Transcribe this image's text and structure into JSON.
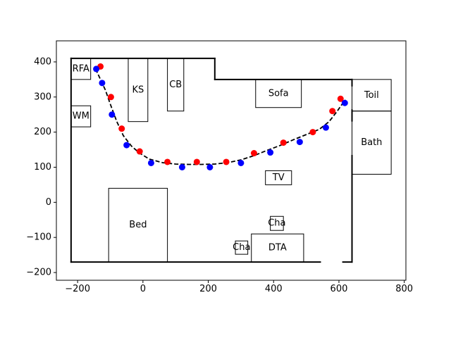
{
  "chart_data": {
    "type": "scatter",
    "title": "",
    "xlabel": "",
    "ylabel": "",
    "xlim": [
      -265,
      805
    ],
    "ylim": [
      -222,
      460
    ],
    "xticks": [
      -200,
      0,
      200,
      400,
      600,
      800
    ],
    "yticks": [
      -200,
      -100,
      0,
      100,
      200,
      300,
      400
    ],
    "xtick_labels": [
      "−200",
      "0",
      "200",
      "400",
      "600",
      "800"
    ],
    "ytick_labels": [
      "−200",
      "−100",
      "0",
      "100",
      "200",
      "300",
      "400"
    ],
    "grid": false,
    "legend": "none",
    "colors": {
      "walls": "#000000",
      "furniture_edge": "#000000",
      "path": "#000000",
      "red_series": "#ff0000",
      "blue_series": "#0000ff",
      "door_gap": "#ffffff"
    },
    "walls": [
      [
        [
          -220,
          410
        ],
        [
          220,
          410
        ]
      ],
      [
        [
          220,
          410
        ],
        [
          220,
          350
        ]
      ],
      [
        [
          220,
          350
        ],
        [
          640,
          350
        ]
      ],
      [
        [
          640,
          350
        ],
        [
          640,
          -170
        ]
      ],
      [
        [
          640,
          -170
        ],
        [
          -220,
          -170
        ]
      ],
      [
        [
          -220,
          -170
        ],
        [
          -220,
          410
        ]
      ]
    ],
    "door_gaps": [
      [
        [
          640,
          330
        ],
        [
          640,
          265
        ]
      ],
      [
        [
          640,
          230
        ],
        [
          640,
          135
        ]
      ],
      [
        [
          545,
          -170
        ],
        [
          610,
          -170
        ]
      ]
    ],
    "furniture": [
      {
        "label": "RFA",
        "x": -220,
        "y": 350,
        "w": 60,
        "h": 60
      },
      {
        "label": "WM",
        "x": -220,
        "y": 215,
        "w": 60,
        "h": 60
      },
      {
        "label": "KS",
        "x": -45,
        "y": 230,
        "w": 60,
        "h": 180
      },
      {
        "label": "CB",
        "x": 75,
        "y": 260,
        "w": 50,
        "h": 150
      },
      {
        "label": "Sofa",
        "x": 345,
        "y": 270,
        "w": 140,
        "h": 80
      },
      {
        "label": "Toil",
        "x": 640,
        "y": 260,
        "w": 120,
        "h": 90
      },
      {
        "label": "Bath",
        "x": 640,
        "y": 80,
        "w": 120,
        "h": 180
      },
      {
        "label": "TV",
        "x": 375,
        "y": 50,
        "w": 80,
        "h": 40
      },
      {
        "label": "Bed",
        "x": -105,
        "y": -170,
        "w": 180,
        "h": 210
      },
      {
        "label": "Cha",
        "x": 390,
        "y": -80,
        "w": 40,
        "h": 40
      },
      {
        "label": "Cha",
        "x": 283,
        "y": -148,
        "w": 38,
        "h": 38
      },
      {
        "label": "DTA",
        "x": 332,
        "y": -170,
        "w": 160,
        "h": 80
      }
    ],
    "path": {
      "x": [
        -145,
        -130,
        -115,
        -100,
        -80,
        -60,
        -35,
        -10,
        20,
        60,
        100,
        140,
        180,
        220,
        260,
        300,
        340,
        380,
        420,
        460,
        500,
        540,
        570,
        595,
        610,
        620
      ],
      "y": [
        380,
        350,
        320,
        280,
        230,
        190,
        160,
        140,
        123,
        113,
        109,
        108,
        108,
        109,
        113,
        121,
        133,
        148,
        162,
        178,
        193,
        208,
        230,
        260,
        280,
        292
      ]
    },
    "series": [
      {
        "color": "#ff0000",
        "x": [
          -130,
          -98,
          -65,
          -10,
          75,
          165,
          255,
          340,
          430,
          520,
          580,
          605
        ],
        "y": [
          387,
          300,
          210,
          145,
          115,
          115,
          115,
          140,
          170,
          200,
          260,
          295
        ]
      },
      {
        "color": "#0000ff",
        "x": [
          -143,
          -125,
          -95,
          -50,
          25,
          120,
          205,
          300,
          390,
          480,
          560,
          618
        ],
        "y": [
          380,
          340,
          250,
          163,
          112,
          100,
          100,
          112,
          142,
          172,
          213,
          283
        ]
      }
    ]
  }
}
